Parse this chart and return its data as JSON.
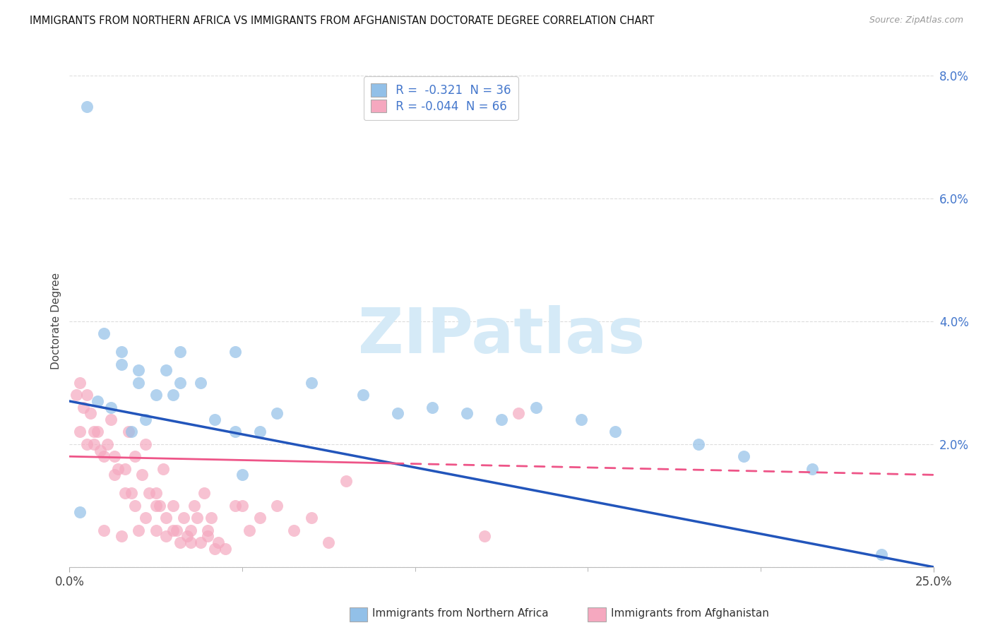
{
  "title": "IMMIGRANTS FROM NORTHERN AFRICA VS IMMIGRANTS FROM AFGHANISTAN DOCTORATE DEGREE CORRELATION CHART",
  "source": "Source: ZipAtlas.com",
  "ylabel": "Doctorate Degree",
  "xlim": [
    0,
    0.25
  ],
  "ylim": [
    0,
    0.08
  ],
  "yticks": [
    0.0,
    0.02,
    0.04,
    0.06,
    0.08
  ],
  "ytick_labels": [
    "",
    "2.0%",
    "4.0%",
    "6.0%",
    "8.0%"
  ],
  "xtick_vals": [
    0.0,
    0.25
  ],
  "xtick_labels": [
    "0.0%",
    "25.0%"
  ],
  "legend_blue_label": "Immigrants from Northern Africa",
  "legend_pink_label": "Immigrants from Afghanistan",
  "R_blue": -0.321,
  "N_blue": 36,
  "R_pink": -0.044,
  "N_pink": 66,
  "blue_scatter_color": "#92C0E8",
  "pink_scatter_color": "#F5A8BF",
  "blue_line_color": "#2255BB",
  "pink_line_color": "#EE5588",
  "watermark_text": "ZIPatlas",
  "watermark_color": "#D5EAF7",
  "title_fontsize": 10.5,
  "background_color": "#FFFFFF",
  "grid_color": "#DDDDDD",
  "tick_label_color": "#4477CC",
  "blue_x": [
    0.008,
    0.005,
    0.012,
    0.018,
    0.022,
    0.03,
    0.032,
    0.038,
    0.015,
    0.02,
    0.025,
    0.028,
    0.01,
    0.015,
    0.02,
    0.055,
    0.048,
    0.06,
    0.07,
    0.085,
    0.095,
    0.105,
    0.115,
    0.125,
    0.135,
    0.148,
    0.158,
    0.182,
    0.195,
    0.215,
    0.003,
    0.032,
    0.042,
    0.048,
    0.05,
    0.235
  ],
  "blue_y": [
    0.027,
    0.075,
    0.026,
    0.022,
    0.024,
    0.028,
    0.035,
    0.03,
    0.033,
    0.03,
    0.028,
    0.032,
    0.038,
    0.035,
    0.032,
    0.022,
    0.035,
    0.025,
    0.03,
    0.028,
    0.025,
    0.026,
    0.025,
    0.024,
    0.026,
    0.024,
    0.022,
    0.02,
    0.018,
    0.016,
    0.009,
    0.03,
    0.024,
    0.022,
    0.015,
    0.002
  ],
  "pink_x": [
    0.003,
    0.005,
    0.007,
    0.009,
    0.012,
    0.014,
    0.017,
    0.019,
    0.022,
    0.025,
    0.027,
    0.03,
    0.033,
    0.036,
    0.039,
    0.041,
    0.002,
    0.004,
    0.006,
    0.008,
    0.011,
    0.013,
    0.016,
    0.018,
    0.021,
    0.023,
    0.026,
    0.028,
    0.031,
    0.034,
    0.037,
    0.04,
    0.043,
    0.003,
    0.005,
    0.007,
    0.01,
    0.013,
    0.016,
    0.019,
    0.022,
    0.025,
    0.028,
    0.032,
    0.035,
    0.038,
    0.042,
    0.01,
    0.015,
    0.02,
    0.025,
    0.03,
    0.035,
    0.04,
    0.045,
    0.05,
    0.055,
    0.06,
    0.065,
    0.13,
    0.048,
    0.052,
    0.07,
    0.075,
    0.12,
    0.08
  ],
  "pink_y": [
    0.022,
    0.02,
    0.022,
    0.019,
    0.024,
    0.016,
    0.022,
    0.018,
    0.02,
    0.012,
    0.016,
    0.01,
    0.008,
    0.01,
    0.012,
    0.008,
    0.028,
    0.026,
    0.025,
    0.022,
    0.02,
    0.018,
    0.016,
    0.012,
    0.015,
    0.012,
    0.01,
    0.008,
    0.006,
    0.005,
    0.008,
    0.006,
    0.004,
    0.03,
    0.028,
    0.02,
    0.018,
    0.015,
    0.012,
    0.01,
    0.008,
    0.006,
    0.005,
    0.004,
    0.006,
    0.004,
    0.003,
    0.006,
    0.005,
    0.006,
    0.01,
    0.006,
    0.004,
    0.005,
    0.003,
    0.01,
    0.008,
    0.01,
    0.006,
    0.025,
    0.01,
    0.006,
    0.008,
    0.004,
    0.005,
    0.014
  ],
  "blue_trend_x0": 0.0,
  "blue_trend_y0": 0.027,
  "blue_trend_x1": 0.25,
  "blue_trend_y1": 0.0,
  "pink_trend_x0": 0.0,
  "pink_trend_y0": 0.018,
  "pink_trend_x1": 0.25,
  "pink_trend_y1": 0.015
}
